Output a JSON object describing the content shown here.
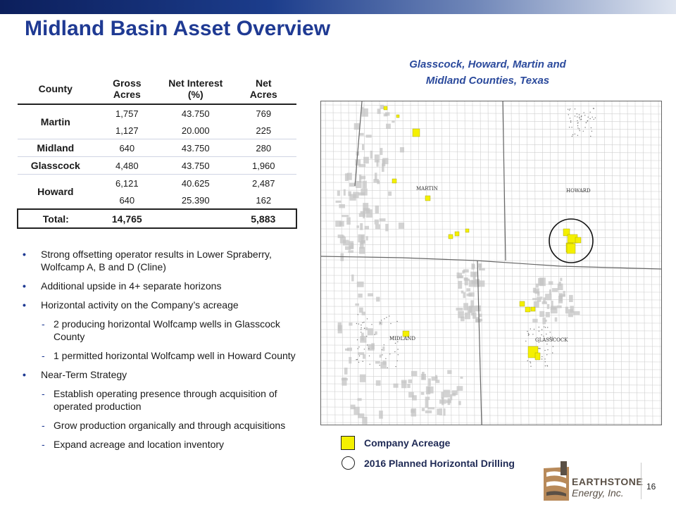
{
  "page": {
    "title": "Midland Basin Asset Overview",
    "page_number": "16"
  },
  "table": {
    "headers": [
      "County",
      "Gross\nAcres",
      "Net Interest\n(%)",
      "Net\nAcres"
    ],
    "rows": [
      {
        "county": "Martin",
        "gross": "1,757",
        "interest": "43.750",
        "net": "769"
      },
      {
        "county": "",
        "gross": "1,127",
        "interest": "20.000",
        "net": "225"
      },
      {
        "county": "Midland",
        "gross": "640",
        "interest": "43.750",
        "net": "280"
      },
      {
        "county": "Glasscock",
        "gross": "4,480",
        "interest": "43.750",
        "net": "1,960"
      },
      {
        "county": "Howard",
        "gross": "6,121",
        "interest": "40.625",
        "net": "2,487"
      },
      {
        "county": "",
        "gross": "640",
        "interest": "25.390",
        "net": "162"
      }
    ],
    "total": {
      "label": "Total:",
      "gross": "14,765",
      "interest": "",
      "net": "5,883"
    }
  },
  "bullets": [
    {
      "level": 1,
      "text": "Strong offsetting operator results in Lower Spraberry, Wolfcamp A, B and D (Cline)"
    },
    {
      "level": 1,
      "text": "Additional upside in 4+ separate horizons"
    },
    {
      "level": 1,
      "text": "Horizontal activity on the Company’s acreage"
    },
    {
      "level": 2,
      "text": "2 producing horizontal Wolfcamp wells in Glasscock County"
    },
    {
      "level": 2,
      "text": "1 permitted horizontal Wolfcamp well in Howard County"
    },
    {
      "level": 1,
      "text": "Near-Term Strategy"
    },
    {
      "level": 2,
      "text": "Establish operating presence through acquisition of operated production"
    },
    {
      "level": 2,
      "text": "Grow production organically and through acquisitions"
    },
    {
      "level": 2,
      "text": "Expand acreage and location inventory"
    }
  ],
  "map": {
    "title_line1": "Glasscock, Howard, Martin and",
    "title_line2": "Midland Counties, Texas",
    "labels": {
      "martin": "MARTIN",
      "howard": "HOWARD",
      "midland": "MIDLAND",
      "glasscock": "GLASSCOCK"
    },
    "acreage_color": "#f4f000"
  },
  "legend": {
    "company_acreage": "Company Acreage",
    "planned_drilling": "2016 Planned Horizontal Drilling"
  },
  "logo": {
    "line1": "EARTHSTONE",
    "line2": "Energy, Inc."
  },
  "colors": {
    "title": "#1f3a93",
    "accent": "#2b4a9c"
  }
}
